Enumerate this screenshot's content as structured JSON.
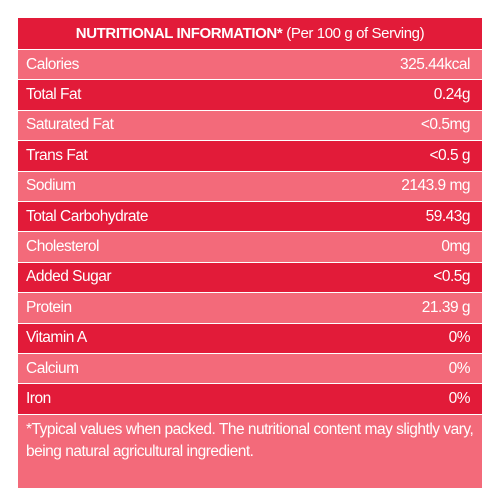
{
  "header": {
    "title_bold": "NUTRITIONAL INFORMATION*",
    "title_light": "(Per 100 g of Serving)"
  },
  "rows": [
    {
      "name": "Calories",
      "value": "325.44kcal"
    },
    {
      "name": "Total Fat",
      "value": "0.24g"
    },
    {
      "name": "Saturated Fat",
      "value": "<0.5mg"
    },
    {
      "name": "Trans Fat",
      "value": "<0.5 g"
    },
    {
      "name": "Sodium",
      "value": "2143.9 mg"
    },
    {
      "name": "Total Carbohydrate",
      "value": "59.43g"
    },
    {
      "name": "Cholesterol",
      "value": "0mg"
    },
    {
      "name": "Added Sugar",
      "value": "<0.5g"
    },
    {
      "name": "Protein",
      "value": "21.39 g"
    },
    {
      "name": "Vitamin A",
      "value": "0%"
    },
    {
      "name": "Calcium",
      "value": "0%"
    },
    {
      "name": "Iron",
      "value": "0%"
    }
  ],
  "footnote": "*Typical values when packed. The nutritional content may slightly vary, being natural agricultural ingredient.",
  "colors": {
    "dark_row": "#e21b39",
    "light_row": "#f36a7a",
    "text": "#ffffff"
  }
}
